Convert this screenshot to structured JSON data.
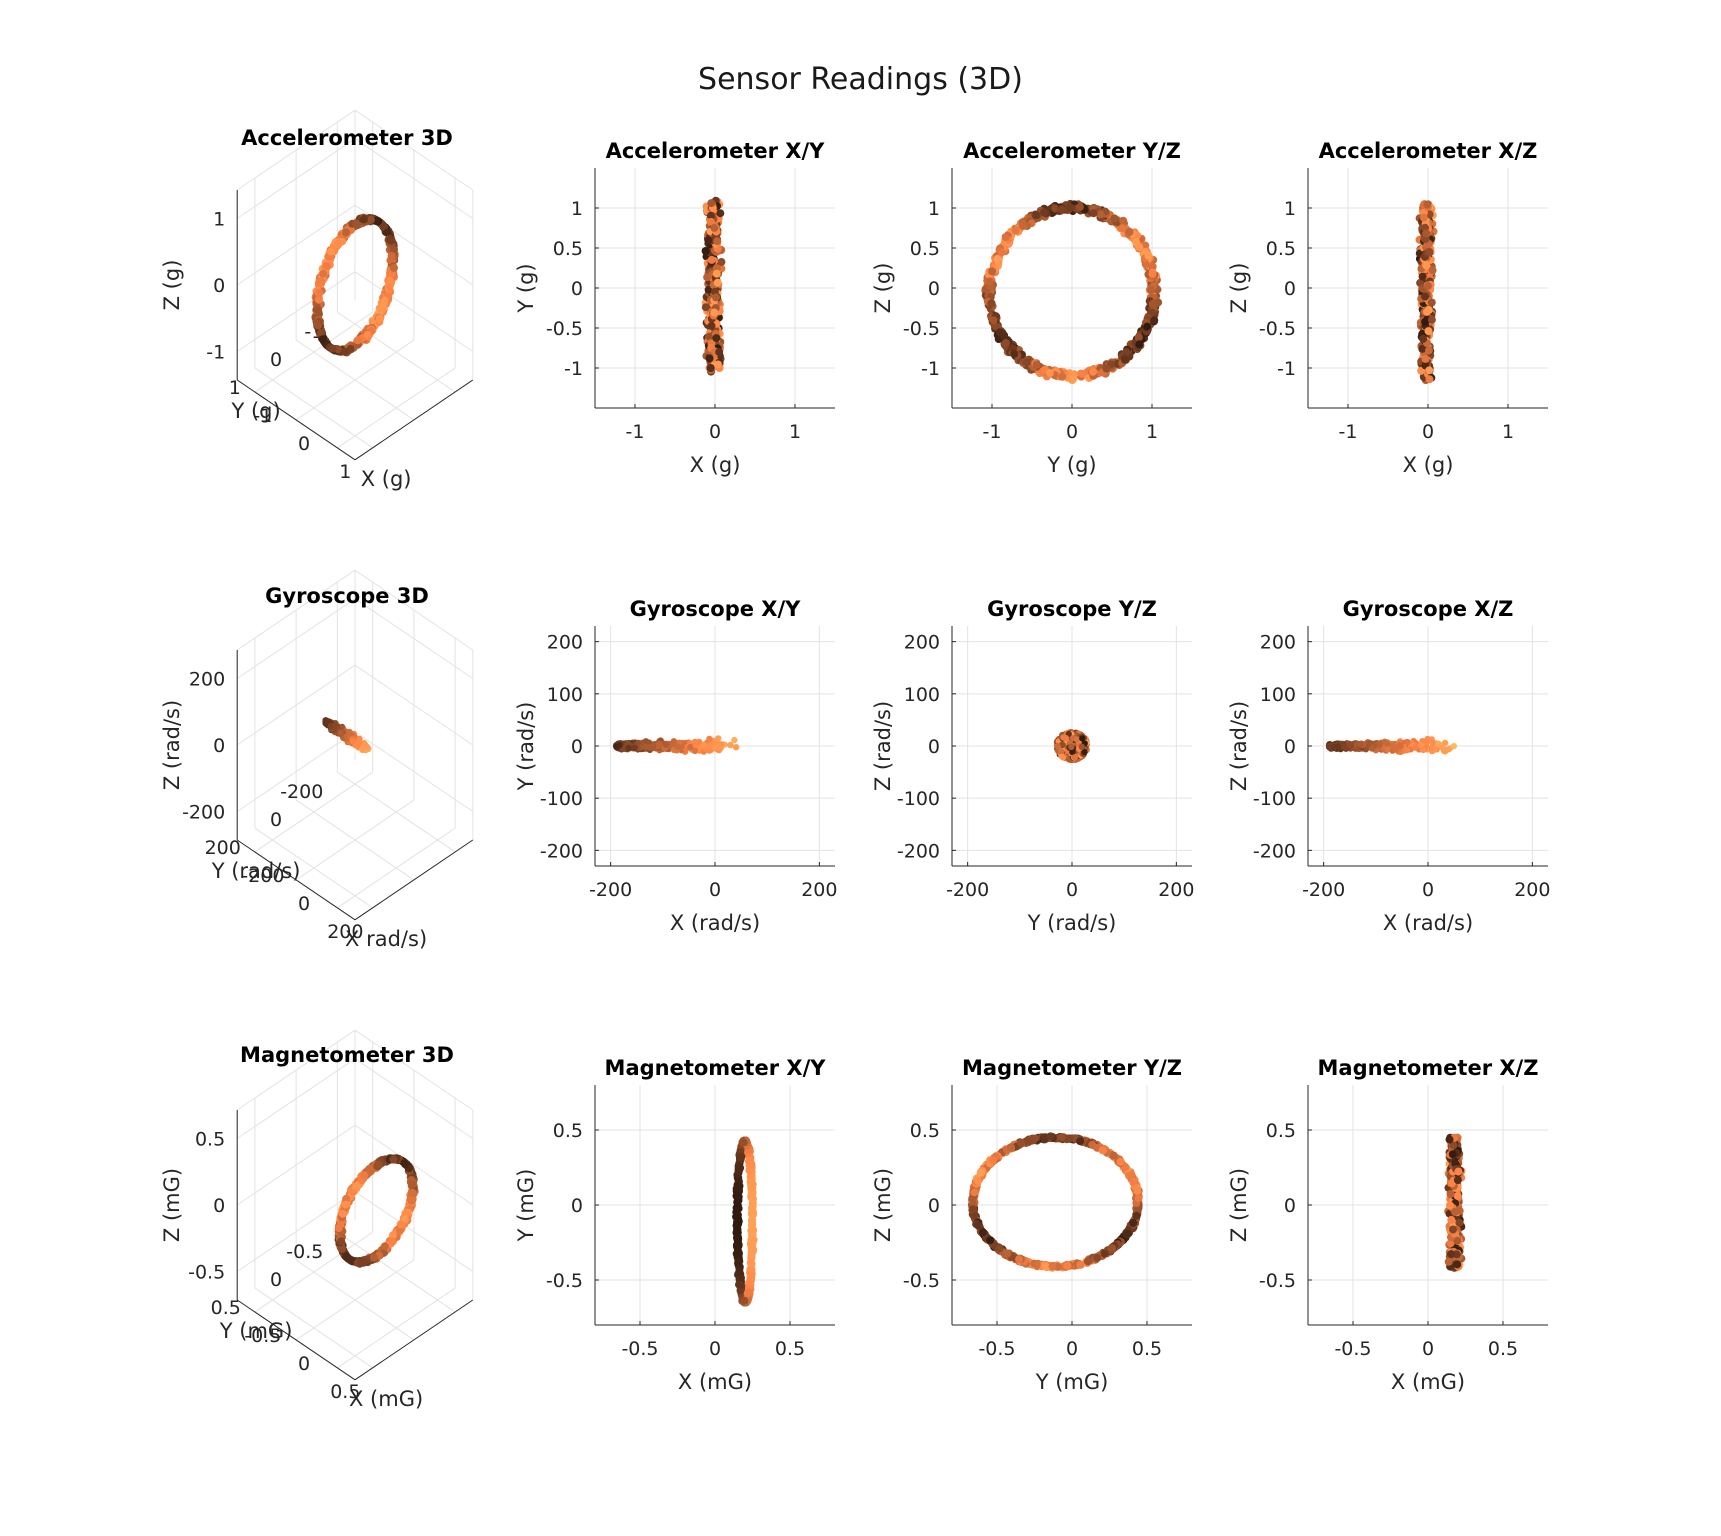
{
  "figure": {
    "title": "Sensor Readings (3D)"
  },
  "colors": {
    "dark": "#2e1a0e",
    "mid": "#8a5a3a",
    "light": "#f0a76a",
    "lightest": "#ffc896",
    "grid": "#e3e3e3",
    "axis": "#262626"
  },
  "chart_data": [
    {
      "type": "scatter",
      "sensor": "accelerometer",
      "view": "3d",
      "title": "Accelerometer 3D",
      "xlabel": "X (g)",
      "ylabel": "Y (g)",
      "zlabel": "Z (g)",
      "xticks": [
        "-1",
        "0",
        "1"
      ],
      "yticks": [
        "-1",
        "0",
        "1"
      ],
      "zticks": [
        "-1",
        "0",
        "1"
      ],
      "xlim": [
        -1.4,
        1.4
      ],
      "ylim": [
        -1.4,
        1.4
      ],
      "zlim": [
        -1.4,
        1.4
      ],
      "grid": true,
      "shape": {
        "kind": "ring",
        "plane": "yz",
        "center": [
          0,
          0,
          0
        ],
        "ry": 1.0,
        "rz": 1.05,
        "xspread": 0.07
      }
    },
    {
      "type": "scatter",
      "sensor": "accelerometer",
      "view": "xy",
      "title": "Accelerometer X/Y",
      "xlabel": "X (g)",
      "ylabel": "Y (g)",
      "xlim": [
        -1.5,
        1.5
      ],
      "ylim": [
        -1.5,
        1.5
      ],
      "xticks": [
        -1,
        0,
        1
      ],
      "yticks": [
        -1,
        -0.5,
        0,
        0.5,
        1
      ],
      "grid": true,
      "shape": {
        "kind": "band",
        "cx": -0.02,
        "halfwidth": 0.08,
        "ymin": -1.05,
        "ymax": 1.1
      }
    },
    {
      "type": "scatter",
      "sensor": "accelerometer",
      "view": "yz",
      "title": "Accelerometer Y/Z",
      "xlabel": "Y (g)",
      "ylabel": "Z (g)",
      "xlim": [
        -1.5,
        1.5
      ],
      "ylim": [
        -1.5,
        1.5
      ],
      "xticks": [
        -1,
        0,
        1
      ],
      "yticks": [
        -1,
        -0.5,
        0,
        0.5,
        1
      ],
      "grid": true,
      "shape": {
        "kind": "ring",
        "cx": 0,
        "cy": -0.05,
        "rx": 1.03,
        "ry": 1.05,
        "noise": 0.06
      }
    },
    {
      "type": "scatter",
      "sensor": "accelerometer",
      "view": "xz",
      "title": "Accelerometer X/Z",
      "xlabel": "X (g)",
      "ylabel": "Z (g)",
      "xlim": [
        -1.5,
        1.5
      ],
      "ylim": [
        -1.5,
        1.5
      ],
      "xticks": [
        -1,
        0,
        1
      ],
      "yticks": [
        -1,
        -0.5,
        0,
        0.5,
        1
      ],
      "grid": true,
      "shape": {
        "kind": "band",
        "cx": -0.02,
        "halfwidth": 0.07,
        "ymin": -1.15,
        "ymax": 1.05
      }
    },
    {
      "type": "scatter",
      "sensor": "gyroscope",
      "view": "3d",
      "title": "Gyroscope 3D",
      "xlabel": "X rad/s)",
      "ylabel": "Y (rad/s)",
      "zlabel": "Z (rad/s)",
      "xticks": [
        "-200",
        "0",
        "200"
      ],
      "yticks": [
        "-200",
        "0",
        "200"
      ],
      "zticks": [
        "-200",
        "0",
        "200"
      ],
      "xlim": [
        -260,
        260
      ],
      "ylim": [
        -260,
        260
      ],
      "zlim": [
        -260,
        260
      ],
      "grid": true,
      "shape": {
        "kind": "streak"
      }
    },
    {
      "type": "scatter",
      "sensor": "gyroscope",
      "view": "xy",
      "title": "Gyroscope X/Y",
      "xlabel": "X (rad/s)",
      "ylabel": "Y (rad/s)",
      "xlim": [
        -230,
        230
      ],
      "ylim": [
        -230,
        230
      ],
      "xticks": [
        -200,
        0,
        200
      ],
      "yticks": [
        -200,
        -100,
        0,
        100,
        200
      ],
      "grid": true,
      "shape": {
        "kind": "streak",
        "xmin": -190,
        "xmax": 55,
        "spread": 18
      }
    },
    {
      "type": "scatter",
      "sensor": "gyroscope",
      "view": "yz",
      "title": "Gyroscope Y/Z",
      "xlabel": "Y (rad/s)",
      "ylabel": "Z (rad/s)",
      "xlim": [
        -230,
        230
      ],
      "ylim": [
        -230,
        230
      ],
      "xticks": [
        -200,
        0,
        200
      ],
      "yticks": [
        -200,
        -100,
        0,
        100,
        200
      ],
      "grid": true,
      "shape": {
        "kind": "blob",
        "cx": 0,
        "cy": 0,
        "r": 30
      }
    },
    {
      "type": "scatter",
      "sensor": "gyroscope",
      "view": "xz",
      "title": "Gyroscope X/Z",
      "xlabel": "X (rad/s)",
      "ylabel": "Z (rad/s)",
      "xlim": [
        -230,
        230
      ],
      "ylim": [
        -230,
        230
      ],
      "xticks": [
        -200,
        0,
        200
      ],
      "yticks": [
        -200,
        -100,
        0,
        100,
        200
      ],
      "grid": true,
      "shape": {
        "kind": "streak",
        "xmin": -190,
        "xmax": 55,
        "spread": 16
      }
    },
    {
      "type": "scatter",
      "sensor": "magnetometer",
      "view": "3d",
      "title": "Magnetometer 3D",
      "xlabel": "X (mG)",
      "ylabel": "Y (mG)",
      "zlabel": "Z (mG)",
      "xticks": [
        "-0.5",
        "0",
        "0.5"
      ],
      "yticks": [
        "-0.5",
        "0",
        "0.5"
      ],
      "zticks": [
        "-0.5",
        "0",
        "0.5"
      ],
      "xlim": [
        -0.8,
        0.8
      ],
      "ylim": [
        -0.8,
        0.8
      ],
      "zlim": [
        -0.8,
        0.8
      ],
      "grid": true,
      "shape": {
        "kind": "ring",
        "plane": "yz",
        "center": [
          0.2,
          -0.1,
          0
        ],
        "ry": 0.55,
        "rz": 0.45,
        "xspread": 0.03
      }
    },
    {
      "type": "scatter",
      "sensor": "magnetometer",
      "view": "xy",
      "title": "Magnetometer X/Y",
      "xlabel": "X (mG)",
      "ylabel": "Y (mG)",
      "xlim": [
        -0.8,
        0.8
      ],
      "ylim": [
        -0.8,
        0.8
      ],
      "xticks": [
        -0.5,
        0,
        0.5
      ],
      "yticks": [
        -0.5,
        0,
        0.5
      ],
      "grid": true,
      "shape": {
        "kind": "thinloop",
        "cx": 0.2,
        "halfwidth": 0.05,
        "ymin": -0.65,
        "ymax": 0.43
      }
    },
    {
      "type": "scatter",
      "sensor": "magnetometer",
      "view": "yz",
      "title": "Magnetometer Y/Z",
      "xlabel": "Y (mG)",
      "ylabel": "Z (mG)",
      "xlim": [
        -0.8,
        0.8
      ],
      "ylim": [
        -0.8,
        0.8
      ],
      "xticks": [
        -0.5,
        0,
        0.5
      ],
      "yticks": [
        -0.5,
        0,
        0.5
      ],
      "grid": true,
      "shape": {
        "kind": "ring",
        "cx": -0.11,
        "cy": 0.02,
        "rx": 0.55,
        "ry": 0.43,
        "noise": 0.012
      }
    },
    {
      "type": "scatter",
      "sensor": "magnetometer",
      "view": "xz",
      "title": "Magnetometer X/Z",
      "xlabel": "X (mG)",
      "ylabel": "Z (mG)",
      "xlim": [
        -0.8,
        0.8
      ],
      "ylim": [
        -0.8,
        0.8
      ],
      "xticks": [
        -0.5,
        0,
        0.5
      ],
      "yticks": [
        -0.5,
        0,
        0.5
      ],
      "grid": true,
      "shape": {
        "kind": "band",
        "cx": 0.18,
        "halfwidth": 0.035,
        "ymin": -0.42,
        "ymax": 0.46
      }
    }
  ]
}
